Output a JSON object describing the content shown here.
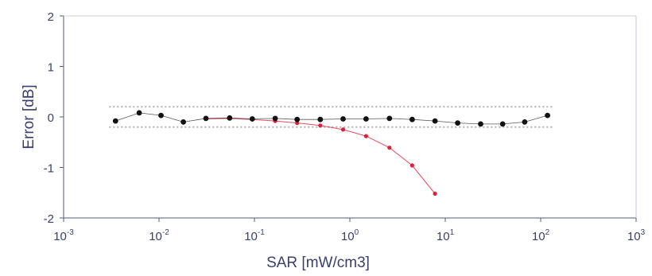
{
  "chart_data": {
    "type": "scatter",
    "xlabel": "SAR [mW/cm3]",
    "ylabel": "Error [dB]",
    "xscale": "log",
    "xlim": [
      0.001,
      1000
    ],
    "ylim": [
      -2,
      2
    ],
    "x_ticks": [
      {
        "value": 0.001,
        "base": "10",
        "exp": "-3"
      },
      {
        "value": 0.01,
        "base": "10",
        "exp": "-2"
      },
      {
        "value": 0.1,
        "base": "10",
        "exp": "-1"
      },
      {
        "value": 1,
        "base": "10",
        "exp": "0"
      },
      {
        "value": 10,
        "base": "10",
        "exp": "1"
      },
      {
        "value": 100,
        "base": "10",
        "exp": "2"
      },
      {
        "value": 1000,
        "base": "10",
        "exp": "3"
      }
    ],
    "y_ticks": [
      {
        "value": 2,
        "label": "2"
      },
      {
        "value": 1,
        "label": "1"
      },
      {
        "value": 0,
        "label": "0"
      },
      {
        "value": -1,
        "label": "-1"
      },
      {
        "value": -2,
        "label": "-2"
      }
    ],
    "grid": false,
    "uncertainty_band": {
      "upper": 0.2,
      "lower": -0.2,
      "color": "#b0b0b0"
    },
    "series": [
      {
        "color": "#111111",
        "x": [
          0.0035,
          0.0062,
          0.0105,
          0.018,
          0.031,
          0.055,
          0.095,
          0.165,
          0.28,
          0.49,
          0.85,
          1.48,
          2.6,
          4.5,
          7.8,
          13.5,
          23.5,
          40,
          68,
          118
        ],
        "y": [
          -0.08,
          0.08,
          0.03,
          -0.1,
          -0.03,
          -0.02,
          -0.04,
          -0.03,
          -0.05,
          -0.05,
          -0.04,
          -0.04,
          -0.03,
          -0.05,
          -0.08,
          -0.12,
          -0.14,
          -0.14,
          -0.1,
          0.03
        ]
      },
      {
        "color": "#e0203a",
        "x": [
          0.031,
          0.055,
          0.095,
          0.165,
          0.28,
          0.49,
          0.85,
          1.48,
          2.6,
          4.5,
          7.8
        ],
        "y": [
          -0.04,
          -0.03,
          -0.05,
          -0.08,
          -0.12,
          -0.17,
          -0.25,
          -0.38,
          -0.61,
          -0.96,
          -1.52
        ]
      }
    ]
  }
}
